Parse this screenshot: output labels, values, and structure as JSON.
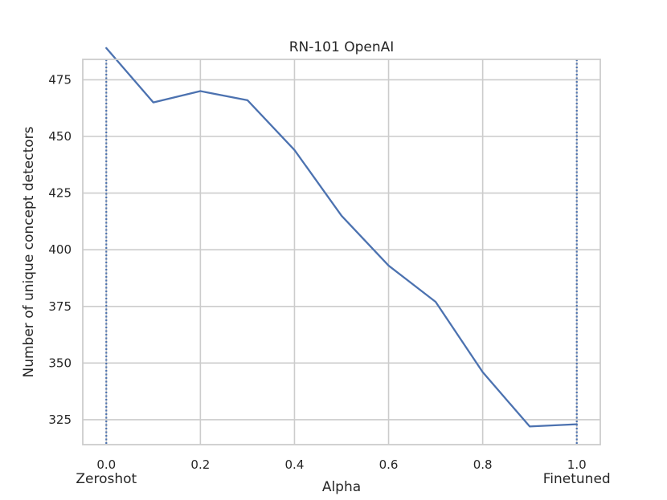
{
  "chart_data": {
    "type": "line",
    "title": "RN-101 OpenAI",
    "xlabel": "Alpha",
    "ylabel": "Number of unique concept detectors",
    "xlim": [
      -0.05,
      1.05
    ],
    "ylim": [
      314,
      484
    ],
    "grid": true,
    "x_ticks": [
      0.0,
      0.2,
      0.4,
      0.6,
      0.8,
      1.0
    ],
    "x_tick_labels": [
      "0.0",
      "0.2",
      "0.4",
      "0.6",
      "0.8",
      "1.0"
    ],
    "y_ticks": [
      325,
      350,
      375,
      400,
      425,
      450,
      475
    ],
    "y_tick_labels": [
      "325",
      "350",
      "375",
      "400",
      "425",
      "450",
      "475"
    ],
    "series": [
      {
        "x": [
          0.0,
          0.1,
          0.2,
          0.3,
          0.4,
          0.5,
          0.6,
          0.7,
          0.8,
          0.9,
          1.0
        ],
        "values": [
          489,
          465,
          470,
          466,
          444,
          415,
          393,
          377,
          346,
          322,
          323
        ],
        "color": "#4c72b0"
      }
    ],
    "vertical_lines": [
      {
        "x": 0.0,
        "label": "Zeroshot",
        "style": "dotted",
        "color": "#4c72b0"
      },
      {
        "x": 1.0,
        "label": "Finetuned",
        "style": "dotted",
        "color": "#4c72b0"
      }
    ]
  },
  "colors": {
    "grid": "#cccccc",
    "frame": "#cccccc",
    "text": "#262626"
  }
}
